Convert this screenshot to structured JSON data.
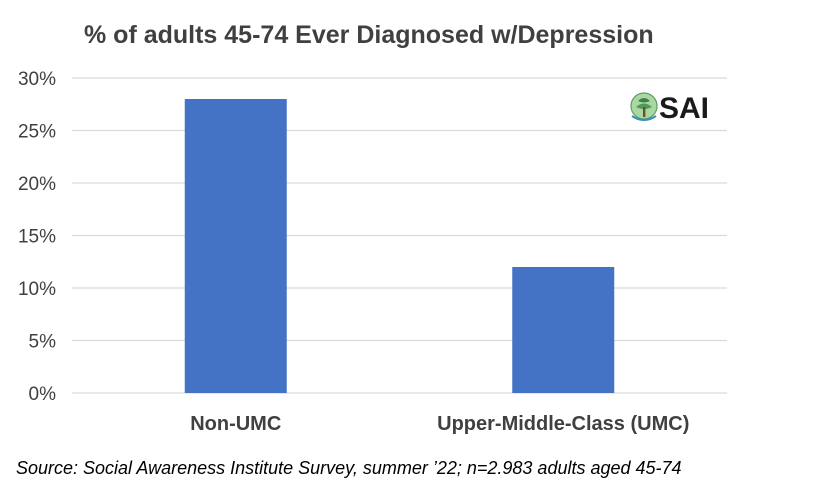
{
  "chart_data": {
    "type": "bar",
    "title": "% of adults 45-74 Ever Diagnosed w/Depression",
    "categories": [
      "Non-UMC",
      "Upper-Middle-Class (UMC)"
    ],
    "values": [
      28,
      12
    ],
    "ylim": [
      0,
      30
    ],
    "yticks": [
      0,
      5,
      10,
      15,
      20,
      25,
      30
    ],
    "ytick_labels": [
      "0%",
      "5%",
      "10%",
      "15%",
      "20%",
      "25%",
      "30%"
    ],
    "grid": true,
    "bar_color": "#4472C4",
    "grid_color": "#D9D9D9"
  },
  "logo": {
    "text": "SAI",
    "icon": "tree-globe-icon"
  },
  "source": "Source: Social Awareness Institute Survey, summer ’22; n=2.983 adults aged 45-74"
}
